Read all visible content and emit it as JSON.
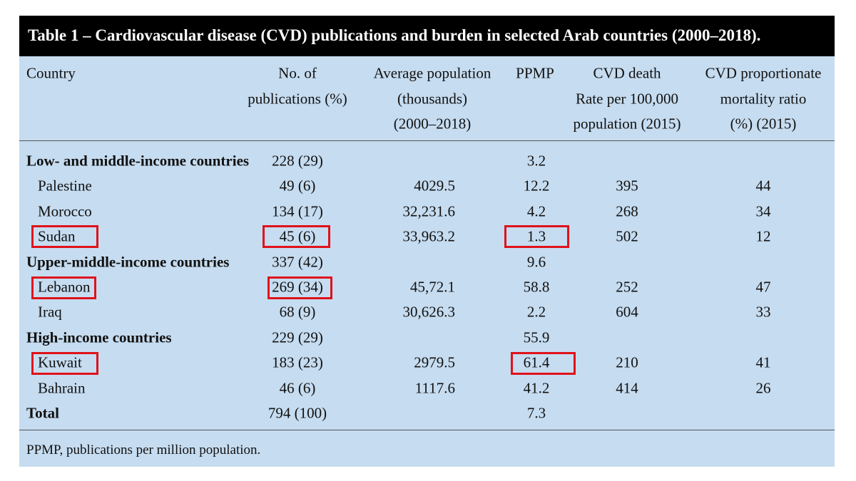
{
  "title": "Table 1 – Cardiovascular disease (CVD) publications and burden in selected Arab countries (2000–2018).",
  "columns": [
    [
      "Country"
    ],
    [
      "No. of",
      "publications (%)"
    ],
    [
      "Average population",
      "(thousands)",
      "(2000–2018)"
    ],
    [
      "PPMP"
    ],
    [
      "CVD death",
      "Rate per 100,000",
      "population (2015)"
    ],
    [
      "CVD proportionate",
      "mortality ratio",
      "(%) (2015)"
    ]
  ],
  "groups": [
    {
      "name": "Low- and middle-income countries",
      "publications": "228 (29)",
      "ppmp": "3.2",
      "countries": [
        {
          "country": "Palestine",
          "publications": "49 (6)",
          "population": "4029.5",
          "ppmp": "12.2",
          "death_rate": "395",
          "ratio": "44"
        },
        {
          "country": "Morocco",
          "publications": "134 (17)",
          "population": "32,231.6",
          "ppmp": "4.2",
          "death_rate": "268",
          "ratio": "34"
        },
        {
          "country": "Sudan",
          "publications": "45 (6)",
          "population": "33,963.2",
          "ppmp": "1.3",
          "death_rate": "502",
          "ratio": "12"
        }
      ]
    },
    {
      "name": "Upper-middle-income countries",
      "publications": "337 (42)",
      "ppmp": "9.6",
      "countries": [
        {
          "country": "Lebanon",
          "publications": "269 (34)",
          "population": "45,72.1",
          "ppmp": "58.8",
          "death_rate": "252",
          "ratio": "47"
        },
        {
          "country": "Iraq",
          "publications": "68 (9)",
          "population": "30,626.3",
          "ppmp": "2.2",
          "death_rate": "604",
          "ratio": "33"
        }
      ]
    },
    {
      "name": "High-income countries",
      "publications": "229 (29)",
      "ppmp": "55.9",
      "countries": [
        {
          "country": "Kuwait",
          "publications": "183 (23)",
          "population": "2979.5",
          "ppmp": "61.4",
          "death_rate": "210",
          "ratio": "41"
        },
        {
          "country": "Bahrain",
          "publications": "46 (6)",
          "population": "1117.6",
          "ppmp": "41.2",
          "death_rate": "414",
          "ratio": "26"
        }
      ]
    }
  ],
  "total": {
    "name": "Total",
    "publications": "794 (100)",
    "ppmp": "7.3"
  },
  "footnote": "PPMP, publications per million population."
}
